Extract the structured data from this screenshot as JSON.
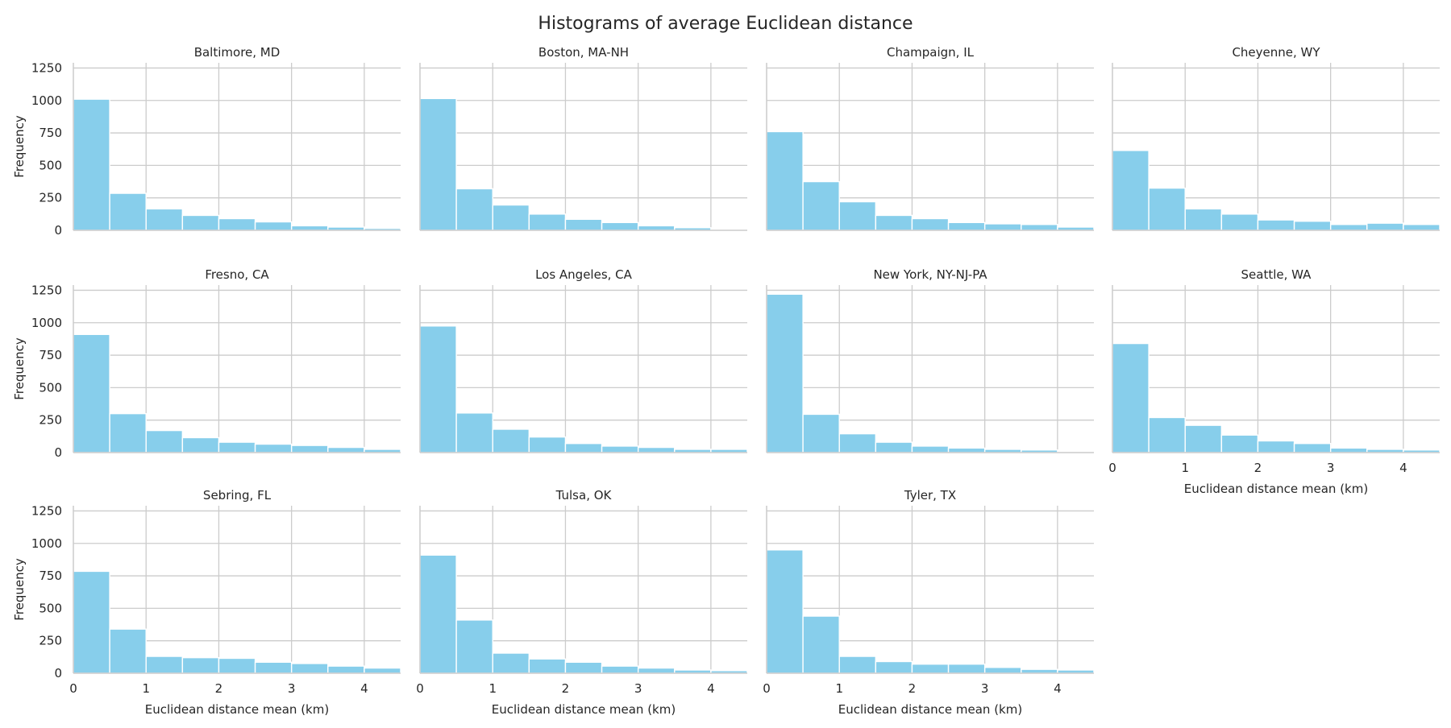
{
  "title": "Histograms of average Euclidean distance",
  "chart_data": {
    "type": "bar",
    "title": "Histograms of average Euclidean distance",
    "xlabel": "Euclidean distance mean (km)",
    "ylabel": "Frequency",
    "xlim": [
      0,
      4.5
    ],
    "ylim": [
      0,
      1290
    ],
    "xticks": [
      0,
      1,
      2,
      3,
      4
    ],
    "yticks": [
      0,
      250,
      500,
      750,
      1000,
      1250
    ],
    "bin_edges": [
      0,
      0.5,
      1.0,
      1.5,
      2.0,
      2.5,
      3.0,
      3.5,
      4.0,
      4.5
    ],
    "grid": true,
    "bar_color": "#87CEEB",
    "series": [
      {
        "name": "Baltimore, MD",
        "values": [
          1010,
          285,
          165,
          115,
          90,
          65,
          35,
          25,
          15
        ]
      },
      {
        "name": "Boston, MA-NH",
        "values": [
          1015,
          320,
          195,
          125,
          85,
          60,
          35,
          20,
          5
        ]
      },
      {
        "name": "Champaign, IL",
        "values": [
          760,
          375,
          220,
          115,
          90,
          60,
          50,
          45,
          25
        ]
      },
      {
        "name": "Cheyenne, WY",
        "values": [
          615,
          325,
          165,
          125,
          80,
          70,
          45,
          55,
          45
        ]
      },
      {
        "name": "Fresno, CA",
        "values": [
          910,
          300,
          170,
          115,
          80,
          65,
          55,
          40,
          25
        ]
      },
      {
        "name": "Los Angeles, CA",
        "values": [
          975,
          305,
          180,
          120,
          70,
          50,
          40,
          25,
          25
        ]
      },
      {
        "name": "New York, NY-NJ-PA",
        "values": [
          1220,
          295,
          145,
          80,
          50,
          35,
          25,
          20,
          5
        ]
      },
      {
        "name": "Seattle, WA",
        "values": [
          840,
          270,
          210,
          135,
          90,
          70,
          35,
          25,
          20
        ]
      },
      {
        "name": "Sebring, FL",
        "values": [
          785,
          340,
          130,
          120,
          115,
          85,
          75,
          55,
          40
        ]
      },
      {
        "name": "Tulsa, OK",
        "values": [
          910,
          410,
          155,
          110,
          85,
          55,
          40,
          25,
          20
        ]
      },
      {
        "name": "Tyler, TX",
        "values": [
          950,
          440,
          130,
          90,
          70,
          70,
          45,
          30,
          25
        ]
      }
    ]
  }
}
